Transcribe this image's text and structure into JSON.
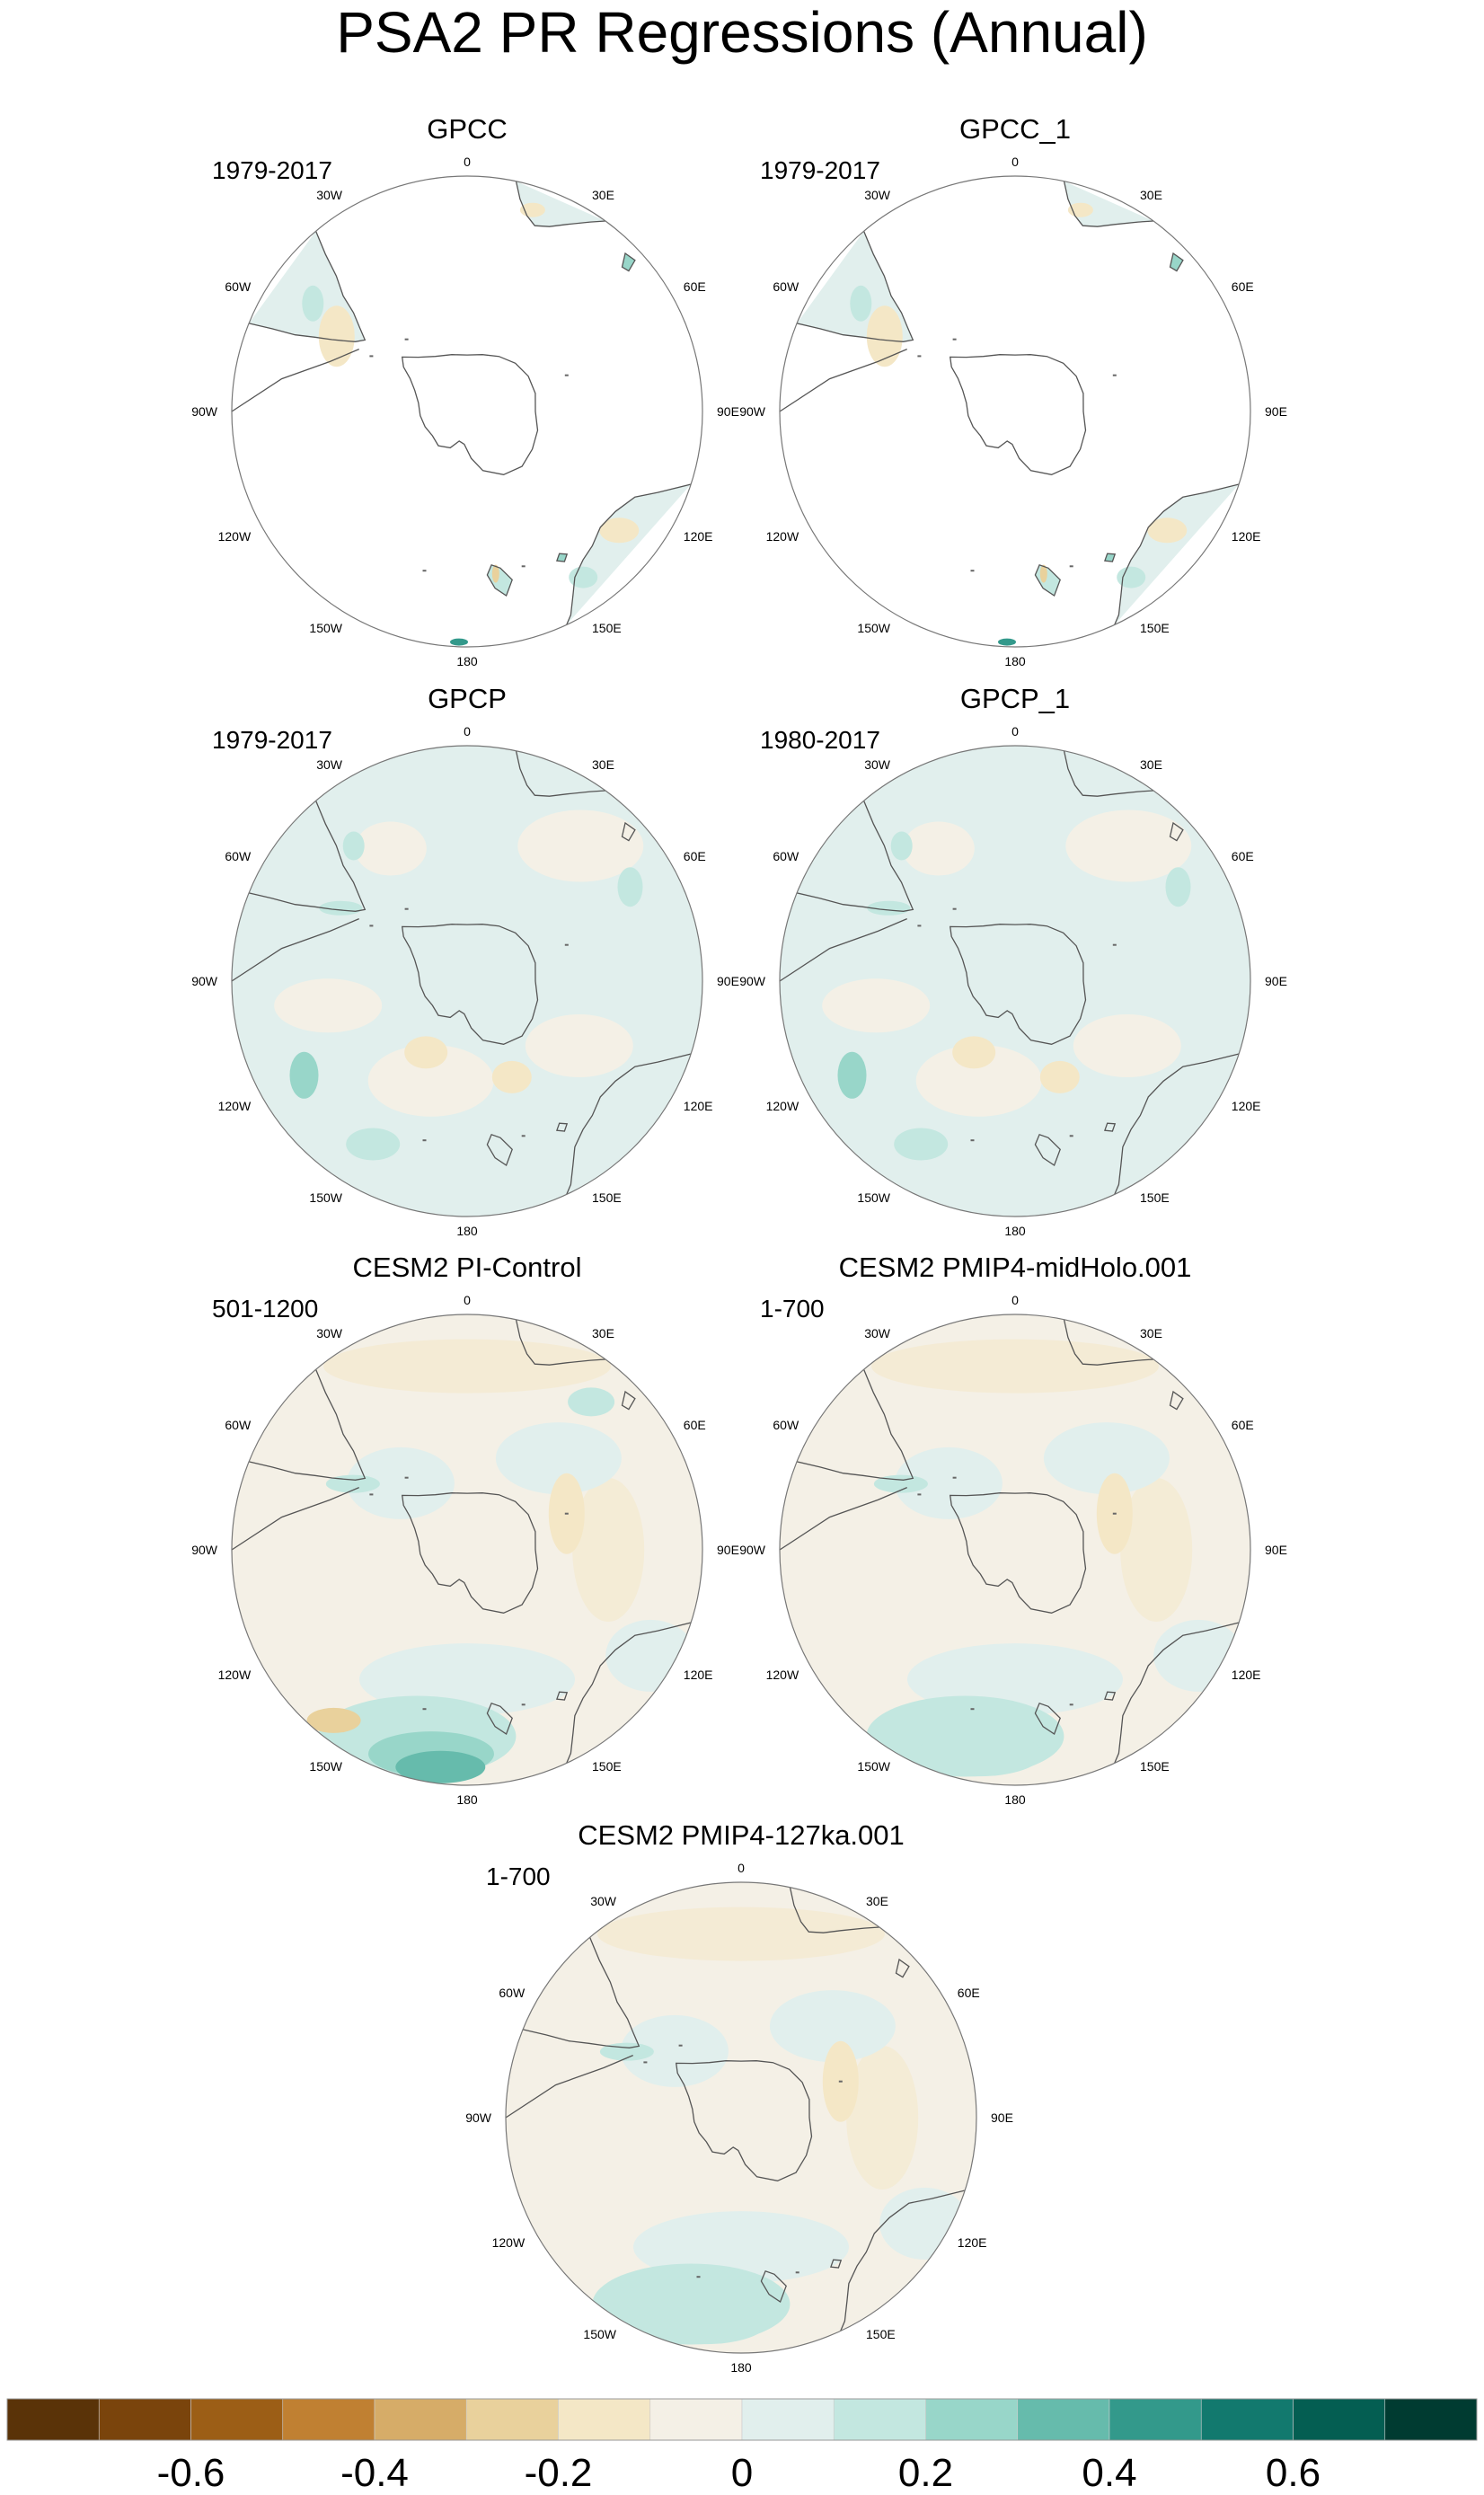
{
  "title": "PSA2 PR Regressions (Annual)",
  "longitude_labels": [
    "0",
    "30E",
    "60E",
    "90E",
    "120E",
    "150E",
    "180",
    "150W",
    "120W",
    "90W",
    "60W",
    "30W"
  ],
  "panels": [
    {
      "name": "GPCC",
      "period": "1979-2017",
      "pattern": "land-only"
    },
    {
      "name": "GPCC_1",
      "period": "1979-2017",
      "pattern": "land-only"
    },
    {
      "name": "GPCP",
      "period": "1979-2017",
      "pattern": "observed-full"
    },
    {
      "name": "GPCP_1",
      "period": "1980-2017",
      "pattern": "observed-full"
    },
    {
      "name": "CESM2 PI-Control",
      "period": "501-1200",
      "pattern": "model-strong"
    },
    {
      "name": "CESM2 PMIP4-midHolo.001",
      "period": "1-700",
      "pattern": "model"
    },
    {
      "name": "CESM2 PMIP4-127ka.001",
      "period": "1-700",
      "pattern": "model"
    }
  ],
  "colorbar": {
    "colors": [
      "#5a3308",
      "#7a440c",
      "#9c5e16",
      "#c08032",
      "#d6ac68",
      "#e9d19c",
      "#f4e7c6",
      "#f4f0e6",
      "#e1efed",
      "#c3e7e0",
      "#98d6c9",
      "#66bbac",
      "#33998b",
      "#12796e",
      "#045e52",
      "#003b31"
    ],
    "tick_labels": [
      {
        "value": -0.6,
        "text": "-0.6"
      },
      {
        "value": -0.4,
        "text": "-0.4"
      },
      {
        "value": -0.2,
        "text": "-0.2"
      },
      {
        "value": 0,
        "text": "0"
      },
      {
        "value": 0.2,
        "text": "0.2"
      },
      {
        "value": 0.4,
        "text": "0.4"
      },
      {
        "value": 0.6,
        "text": "0.6"
      }
    ],
    "range": [
      -0.8,
      0.8
    ]
  }
}
